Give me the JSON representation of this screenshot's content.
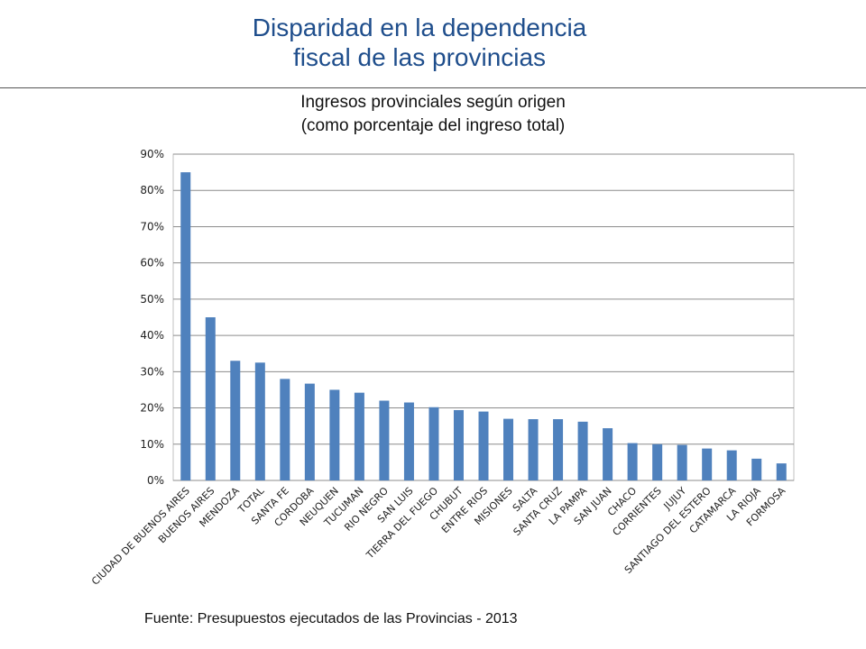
{
  "slide": {
    "title_line1": "Disparidad en la dependencia",
    "title_line2": "fiscal de las provincias",
    "source": "Fuente: Presupuestos ejecutados de las Provincias - 2013"
  },
  "chart_data": {
    "type": "bar",
    "title": "Ingresos provinciales según origen",
    "subtitle": "(como porcentaje del ingreso total)",
    "xlabel": "",
    "ylabel": "",
    "ylim": [
      0,
      90
    ],
    "yticks": [
      "0%",
      "10%",
      "20%",
      "30%",
      "40%",
      "50%",
      "60%",
      "70%",
      "80%",
      "90%"
    ],
    "grid": true,
    "bar_color": "#4f81bd",
    "categories": [
      "CIUDAD DE BUENOS AIRES",
      "BUENOS AIRES",
      "MENDOZA",
      "TOTAL",
      "SANTA FE",
      "CORDOBA",
      "NEUQUEN",
      "TUCUMAN",
      "RIO NEGRO",
      "SAN LUIS",
      "TIERRA DEL FUEGO",
      "CHUBUT",
      "ENTRE RIOS",
      "MISIONES",
      "SALTA",
      "SANTA CRUZ",
      "LA PAMPA",
      "SAN JUAN",
      "CHACO",
      "CORRIENTES",
      "JUJUY",
      "SANTIAGO DEL ESTERO",
      "CATAMARCA",
      "LA RIOJA",
      "FORMOSA"
    ],
    "values": [
      85,
      45,
      33,
      32.5,
      28,
      26.7,
      25,
      24.2,
      22,
      21.5,
      20.2,
      19.4,
      19,
      17,
      16.9,
      16.9,
      16.2,
      14.4,
      10.3,
      10,
      9.8,
      8.8,
      8.3,
      6,
      4.7
    ]
  }
}
